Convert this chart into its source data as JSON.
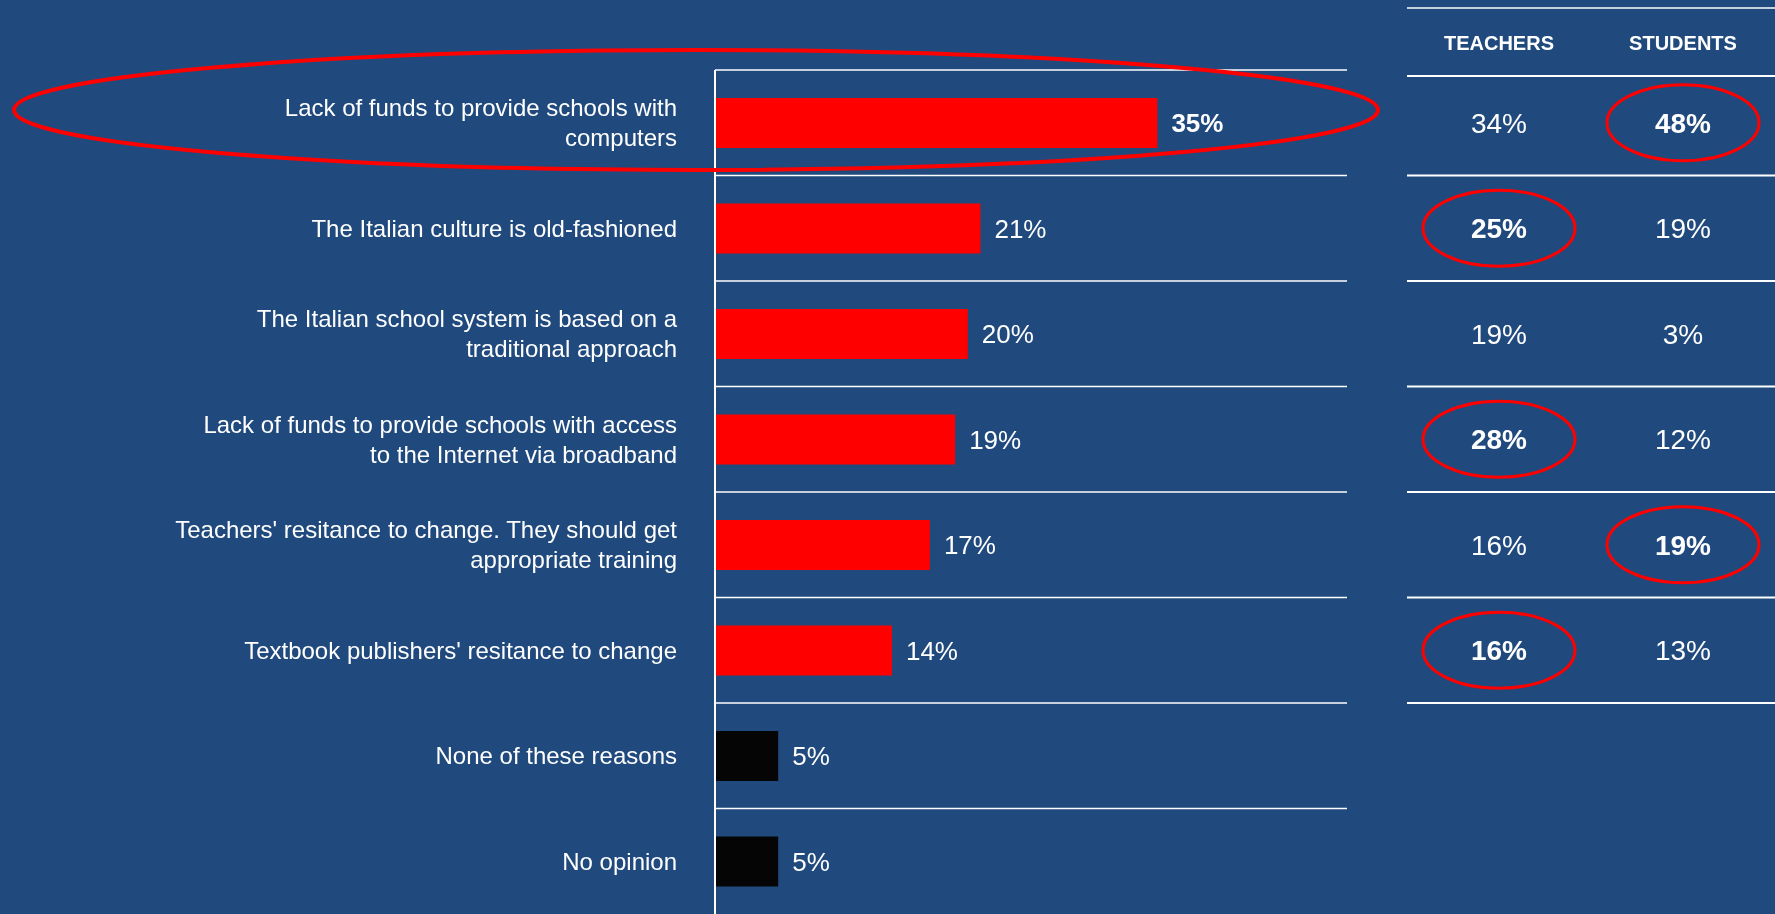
{
  "chart_data": [
    {
      "type": "bar",
      "orientation": "horizontal",
      "categories": [
        "Lack of funds to provide schools with computers",
        "The Italian culture is old-fashioned",
        "The Italian school system is based on a traditional approach",
        "Lack of funds to provide schools with access to the Internet via broadband",
        "Teachers' resitance to change. They should get appropriate training",
        "Textbook publishers' resitance to change",
        "None of these reasons",
        "No opinion"
      ],
      "values": [
        35,
        21,
        20,
        19,
        17,
        14,
        5,
        5
      ],
      "colors": [
        "#ff0000",
        "#ff0000",
        "#ff0000",
        "#ff0000",
        "#ff0000",
        "#ff0000",
        "#050505",
        "#050505"
      ],
      "value_labels": [
        "35%",
        "21%",
        "20%",
        "19%",
        "17%",
        "14%",
        "5%",
        "5%"
      ],
      "grid": "y"
    },
    {
      "type": "other",
      "categories": [
        "TEACHERS",
        "STUDENTS"
      ],
      "annotations": [
        "34%",
        "48%",
        "25%",
        "19%",
        "19%",
        "3%",
        "28%",
        "12%",
        "16%",
        "19%",
        "16%",
        "13%"
      ]
    }
  ]
}
